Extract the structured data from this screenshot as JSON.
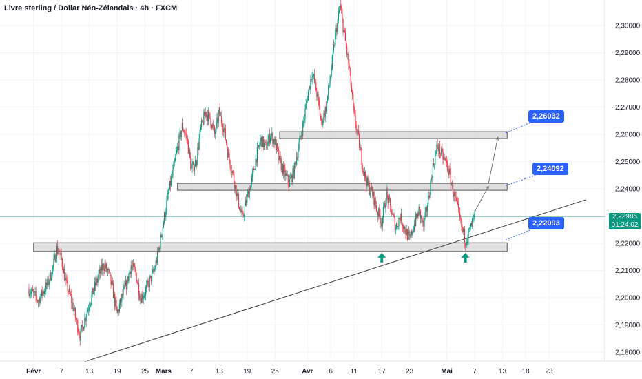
{
  "header": {
    "title": "Livre sterling / Dollar Néo-Zélandais · 4h · FXCM"
  },
  "price_tag": {
    "price": "2,22985",
    "countdown": "01:24:02"
  },
  "colors": {
    "up": "#089981",
    "down": "#f23645",
    "callout": "#2962ff",
    "zone_fill": "#d9d9d9",
    "zone_border": "#555555"
  },
  "chart_data": {
    "type": "candlestick",
    "title": "Livre sterling / Dollar Néo-Zélandais · 4h · FXCM",
    "ylim": [
      2.175,
      2.312
    ],
    "y_ticks": [
      "2,30000",
      "2,29000",
      "2,28000",
      "2,27000",
      "2,26000",
      "2,25000",
      "2,24000",
      "2,23000",
      "2,22000",
      "2,21000",
      "2,20000",
      "2,19000",
      "2,18000"
    ],
    "y_tick_values": [
      2.3,
      2.29,
      2.28,
      2.27,
      2.26,
      2.25,
      2.24,
      2.23,
      2.22,
      2.21,
      2.2,
      2.19,
      2.18
    ],
    "x_ticks": [
      {
        "label": "Févr",
        "day": 1,
        "bold": true
      },
      {
        "label": "7",
        "day": 7
      },
      {
        "label": "13",
        "day": 13
      },
      {
        "label": "19",
        "day": 19
      },
      {
        "label": "25",
        "day": 25
      },
      {
        "label": "Mars",
        "day": 29,
        "bold": true
      },
      {
        "label": "7",
        "day": 35
      },
      {
        "label": "13",
        "day": 41
      },
      {
        "label": "19",
        "day": 47
      },
      {
        "label": "25",
        "day": 53
      },
      {
        "label": "Avr",
        "day": 60,
        "bold": true
      },
      {
        "label": "6",
        "day": 65
      },
      {
        "label": "11",
        "day": 70
      },
      {
        "label": "17",
        "day": 76
      },
      {
        "label": "23",
        "day": 82
      },
      {
        "label": "Mai",
        "day": 90,
        "bold": true
      },
      {
        "label": "7",
        "day": 96
      },
      {
        "label": "13",
        "day": 102
      },
      {
        "label": "18",
        "day": 107
      },
      {
        "label": "23",
        "day": 112
      }
    ],
    "close_path": [
      [
        0,
        2.203
      ],
      [
        2,
        2.199
      ],
      [
        4,
        2.205
      ],
      [
        5,
        2.21
      ],
      [
        6,
        2.218
      ],
      [
        7,
        2.214
      ],
      [
        8,
        2.205
      ],
      [
        9,
        2.2
      ],
      [
        10,
        2.193
      ],
      [
        11,
        2.186
      ],
      [
        12,
        2.192
      ],
      [
        13,
        2.198
      ],
      [
        14,
        2.203
      ],
      [
        15,
        2.208
      ],
      [
        16,
        2.212
      ],
      [
        17,
        2.21
      ],
      [
        18,
        2.203
      ],
      [
        19,
        2.194
      ],
      [
        20,
        2.2
      ],
      [
        21,
        2.205
      ],
      [
        22,
        2.212
      ],
      [
        23,
        2.209
      ],
      [
        24,
        2.2
      ],
      [
        25,
        2.202
      ],
      [
        26,
        2.206
      ],
      [
        27,
        2.21
      ],
      [
        28,
        2.218
      ],
      [
        29,
        2.228
      ],
      [
        30,
        2.238
      ],
      [
        31,
        2.246
      ],
      [
        32,
        2.255
      ],
      [
        33,
        2.263
      ],
      [
        34,
        2.259
      ],
      [
        35,
        2.247
      ],
      [
        36,
        2.25
      ],
      [
        37,
        2.262
      ],
      [
        38,
        2.268
      ],
      [
        39,
        2.266
      ],
      [
        40,
        2.26
      ],
      [
        41,
        2.268
      ],
      [
        42,
        2.262
      ],
      [
        43,
        2.252
      ],
      [
        44,
        2.245
      ],
      [
        45,
        2.236
      ],
      [
        46,
        2.229
      ],
      [
        47,
        2.237
      ],
      [
        48,
        2.243
      ],
      [
        49,
        2.252
      ],
      [
        50,
        2.258
      ],
      [
        51,
        2.255
      ],
      [
        52,
        2.26
      ],
      [
        53,
        2.257
      ],
      [
        54,
        2.25
      ],
      [
        55,
        2.246
      ],
      [
        56,
        2.242
      ],
      [
        57,
        2.246
      ],
      [
        58,
        2.255
      ],
      [
        59,
        2.263
      ],
      [
        60,
        2.274
      ],
      [
        61,
        2.283
      ],
      [
        62,
        2.275
      ],
      [
        63,
        2.264
      ],
      [
        64,
        2.27
      ],
      [
        65,
        2.282
      ],
      [
        66,
        2.296
      ],
      [
        67,
        2.307
      ],
      [
        68,
        2.296
      ],
      [
        69,
        2.284
      ],
      [
        70,
        2.267
      ],
      [
        71,
        2.258
      ],
      [
        72,
        2.247
      ],
      [
        73,
        2.241
      ],
      [
        74,
        2.238
      ],
      [
        75,
        2.232
      ],
      [
        76,
        2.228
      ],
      [
        77,
        2.238
      ],
      [
        78,
        2.232
      ],
      [
        79,
        2.226
      ],
      [
        80,
        2.23
      ],
      [
        81,
        2.225
      ],
      [
        82,
        2.221
      ],
      [
        83,
        2.227
      ],
      [
        84,
        2.232
      ],
      [
        85,
        2.226
      ],
      [
        86,
        2.236
      ],
      [
        87,
        2.248
      ],
      [
        88,
        2.256
      ],
      [
        89,
        2.252
      ],
      [
        90,
        2.249
      ],
      [
        91,
        2.242
      ],
      [
        92,
        2.235
      ],
      [
        93,
        2.227
      ],
      [
        94,
        2.221
      ],
      [
        95,
        2.225
      ],
      [
        96,
        2.2298
      ]
    ],
    "support_resistance_zones": [
      {
        "top": 2.261,
        "bottom": 2.259,
        "from_day": 54,
        "to_day": 103
      },
      {
        "top": 2.242,
        "bottom": 2.2397,
        "from_day": 32,
        "to_day": 103
      },
      {
        "top": 2.2202,
        "bottom": 2.217,
        "from_day": 1,
        "to_day": 103
      }
    ],
    "trendline": {
      "from": {
        "day": 12,
        "price": 2.1765
      },
      "to": {
        "day": 120,
        "price": 2.236
      }
    },
    "current_price_line": 2.2298,
    "callouts": [
      {
        "label": "2,26032",
        "value": 2.26032
      },
      {
        "label": "2,24092",
        "value": 2.24092
      },
      {
        "label": "2,22093",
        "value": 2.22093
      }
    ],
    "arrows_up_days": [
      76,
      94
    ],
    "projection_arrows": [
      {
        "from": {
          "day": 96,
          "price": 2.2315
        },
        "to": {
          "day": 99,
          "price": 2.241
        }
      },
      {
        "from": {
          "day": 99,
          "price": 2.242
        },
        "to": {
          "day": 101,
          "price": 2.259
        }
      }
    ]
  }
}
